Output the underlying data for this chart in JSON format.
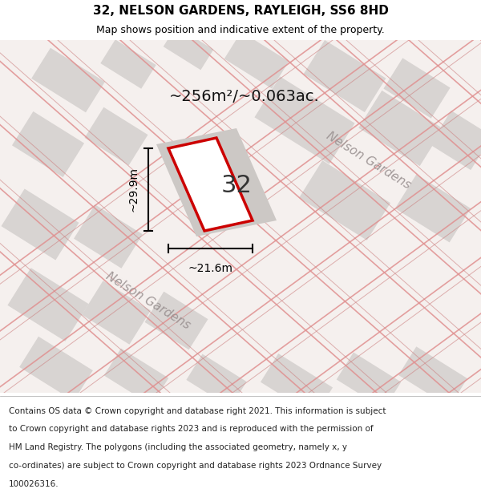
{
  "title_line1": "32, NELSON GARDENS, RAYLEIGH, SS6 8HD",
  "title_line2": "Map shows position and indicative extent of the property.",
  "area_text": "~256m²/~0.063ac.",
  "property_number": "32",
  "dim_width": "~21.6m",
  "dim_height": "~29.9m",
  "street_label1": "Nelson Gardens",
  "street_label2": "Nelson Gardens",
  "footer_lines": [
    "Contains OS data © Crown copyright and database right 2021. This information is subject",
    "to Crown copyright and database rights 2023 and is reproduced with the permission of",
    "HM Land Registry. The polygons (including the associated geometry, namely x, y",
    "co-ordinates) are subject to Crown copyright and database rights 2023 Ordnance Survey",
    "100026316."
  ],
  "map_bg": "#f5f0ee",
  "plot_color": "#cc0000",
  "block_color": "#d8d4d2",
  "road_color": "#e09090",
  "road_color2": "#cc8080"
}
